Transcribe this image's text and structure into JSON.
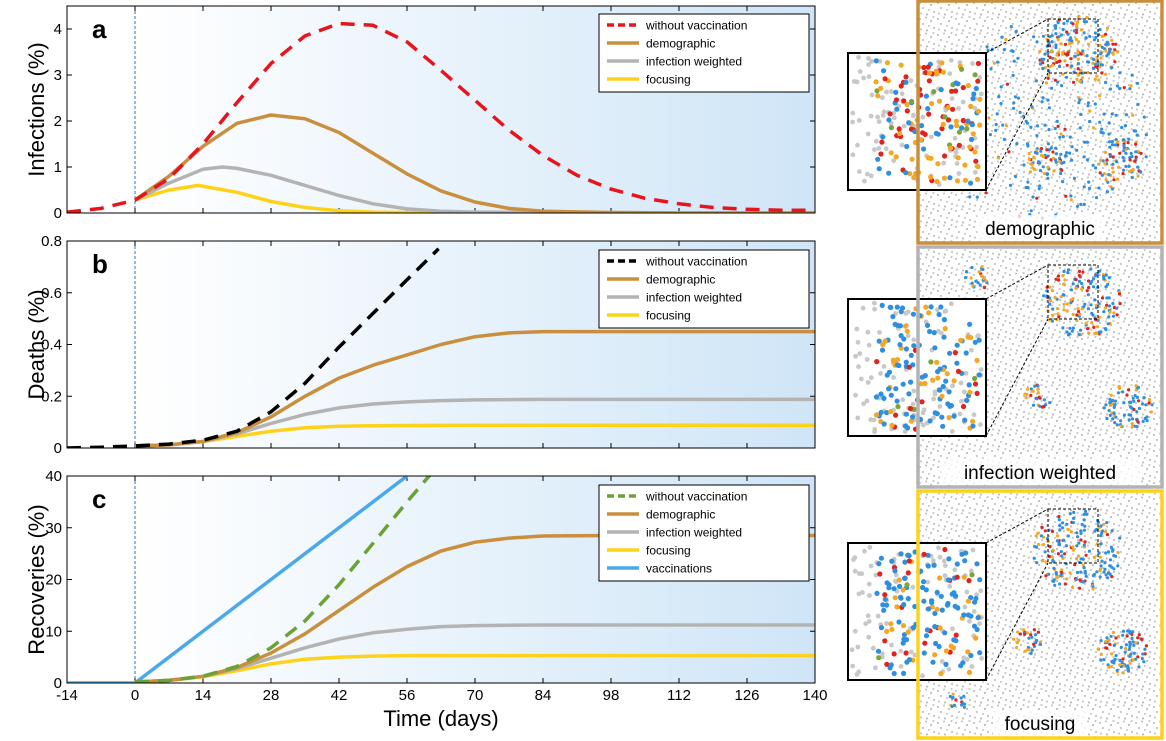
{
  "figure": {
    "xlabel": "Time (days)",
    "x_ticks": [
      -14,
      0,
      14,
      28,
      42,
      56,
      70,
      84,
      98,
      112,
      126,
      140
    ],
    "xlim": [
      -14,
      140
    ],
    "vaccination_start_day": 0
  },
  "colors": {
    "demographic": "#c98f3e",
    "infection_weighted": "#b3b3b3",
    "focusing": "#ffd21a",
    "vaccinations": "#4aa8ec",
    "without_vaccination_a": "#e8141c",
    "without_vaccination_b": "#000000",
    "without_vaccination_c": "#6aa235",
    "dashed_marker": "#1f77d6"
  },
  "chart_data": [
    {
      "type": "line",
      "panel_letter": "a",
      "ylabel": "Infections (%)",
      "ylim": [
        0,
        4.5
      ],
      "y_ticks": [
        0,
        1,
        2,
        3,
        4
      ],
      "legend_position": "top-right",
      "series": [
        {
          "name": "without vaccination",
          "key": "without_vaccination_a",
          "dashed": true,
          "x": [
            -14,
            -7,
            0,
            7,
            14,
            21,
            28,
            35,
            42,
            49,
            56,
            63,
            70,
            77,
            84,
            91,
            98,
            105,
            112,
            119,
            126,
            133,
            140
          ],
          "y": [
            0.02,
            0.1,
            0.28,
            0.75,
            1.5,
            2.4,
            3.25,
            3.85,
            4.12,
            4.08,
            3.72,
            3.1,
            2.45,
            1.8,
            1.25,
            0.82,
            0.52,
            0.32,
            0.2,
            0.12,
            0.08,
            0.06,
            0.06
          ]
        },
        {
          "name": "demographic",
          "key": "demographic",
          "dashed": false,
          "x": [
            0,
            7,
            14,
            21,
            28,
            35,
            42,
            49,
            56,
            63,
            70,
            77,
            84,
            98,
            112,
            126,
            140
          ],
          "y": [
            0.28,
            0.8,
            1.45,
            1.95,
            2.13,
            2.05,
            1.75,
            1.3,
            0.85,
            0.48,
            0.24,
            0.1,
            0.04,
            0.01,
            0.0,
            0.0,
            0.0
          ]
        },
        {
          "name": "infection weighted",
          "key": "infection_weighted",
          "dashed": false,
          "x": [
            0,
            7,
            14,
            18,
            21,
            28,
            35,
            42,
            49,
            56,
            63,
            70,
            84,
            98,
            112,
            126,
            140
          ],
          "y": [
            0.28,
            0.65,
            0.95,
            1.0,
            0.97,
            0.82,
            0.6,
            0.38,
            0.2,
            0.09,
            0.04,
            0.02,
            0.01,
            0.0,
            0.0,
            0.0,
            0.0
          ]
        },
        {
          "name": "focusing",
          "key": "focusing",
          "dashed": false,
          "x": [
            0,
            7,
            13,
            21,
            28,
            35,
            42,
            49,
            56,
            70,
            84,
            98,
            112,
            126,
            140
          ],
          "y": [
            0.28,
            0.5,
            0.6,
            0.45,
            0.25,
            0.12,
            0.05,
            0.02,
            0.01,
            0.0,
            0.0,
            0.0,
            0.0,
            0.0,
            0.0
          ]
        }
      ]
    },
    {
      "type": "line",
      "panel_letter": "b",
      "ylabel": "Deaths (%)",
      "ylim": [
        0,
        0.8
      ],
      "y_ticks": [
        0,
        0.2,
        0.4,
        0.6,
        0.8
      ],
      "legend_position": "top-right",
      "series": [
        {
          "name": "without vaccination",
          "key": "without_vaccination_b",
          "dashed": true,
          "x": [
            -14,
            -7,
            0,
            7,
            14,
            21,
            28,
            35,
            42,
            49,
            56,
            62.5
          ],
          "y": [
            0.0,
            0.003,
            0.008,
            0.015,
            0.03,
            0.065,
            0.14,
            0.25,
            0.39,
            0.52,
            0.65,
            0.77
          ]
        },
        {
          "name": "demographic",
          "key": "demographic",
          "dashed": false,
          "x": [
            0,
            7,
            14,
            21,
            28,
            35,
            42,
            49,
            56,
            63,
            70,
            77,
            84,
            98,
            112,
            126,
            140
          ],
          "y": [
            0.008,
            0.012,
            0.025,
            0.06,
            0.12,
            0.2,
            0.27,
            0.32,
            0.36,
            0.4,
            0.43,
            0.445,
            0.45,
            0.45,
            0.45,
            0.45,
            0.45
          ]
        },
        {
          "name": "infection weighted",
          "key": "infection_weighted",
          "dashed": false,
          "x": [
            0,
            7,
            14,
            21,
            28,
            35,
            42,
            49,
            56,
            63,
            70,
            84,
            98,
            112,
            126,
            140
          ],
          "y": [
            0.008,
            0.012,
            0.025,
            0.055,
            0.095,
            0.13,
            0.155,
            0.17,
            0.178,
            0.183,
            0.186,
            0.188,
            0.188,
            0.188,
            0.188,
            0.188
          ]
        },
        {
          "name": "focusing",
          "key": "focusing",
          "dashed": false,
          "x": [
            0,
            7,
            14,
            21,
            28,
            35,
            42,
            49,
            56,
            70,
            84,
            98,
            112,
            126,
            140
          ],
          "y": [
            0.008,
            0.012,
            0.025,
            0.045,
            0.065,
            0.078,
            0.084,
            0.086,
            0.087,
            0.088,
            0.088,
            0.088,
            0.088,
            0.088,
            0.088
          ]
        }
      ]
    },
    {
      "type": "line",
      "panel_letter": "c",
      "ylabel": "Recoveries (%)",
      "ylim": [
        0,
        40
      ],
      "y_ticks": [
        0,
        10,
        20,
        30,
        40
      ],
      "legend_position": "top-right",
      "series": [
        {
          "name": "without vaccination",
          "key": "without_vaccination_c",
          "dashed": true,
          "x": [
            0,
            7,
            14,
            21,
            28,
            35,
            42,
            49,
            56,
            61
          ],
          "y": [
            0.2,
            0.5,
            1.3,
            3.2,
            6.8,
            12.0,
            19.0,
            27.0,
            35.0,
            40.5
          ]
        },
        {
          "name": "demographic",
          "key": "demographic",
          "dashed": false,
          "x": [
            0,
            7,
            14,
            21,
            28,
            35,
            42,
            49,
            56,
            63,
            70,
            77,
            84,
            98,
            112,
            126,
            140
          ],
          "y": [
            0.2,
            0.5,
            1.3,
            3.0,
            5.8,
            9.5,
            14.0,
            18.5,
            22.5,
            25.5,
            27.2,
            28.0,
            28.4,
            28.5,
            28.5,
            28.5,
            28.5
          ]
        },
        {
          "name": "infection weighted",
          "key": "infection_weighted",
          "dashed": false,
          "x": [
            0,
            7,
            14,
            21,
            28,
            35,
            42,
            49,
            56,
            63,
            70,
            84,
            98,
            112,
            126,
            140
          ],
          "y": [
            0.2,
            0.5,
            1.3,
            2.8,
            4.8,
            6.8,
            8.5,
            9.7,
            10.4,
            10.9,
            11.1,
            11.2,
            11.2,
            11.2,
            11.2,
            11.2
          ]
        },
        {
          "name": "focusing",
          "key": "focusing",
          "dashed": false,
          "x": [
            0,
            7,
            14,
            21,
            28,
            35,
            42,
            49,
            56,
            70,
            84,
            98,
            112,
            126,
            140
          ],
          "y": [
            0.2,
            0.5,
            1.2,
            2.4,
            3.7,
            4.6,
            5.0,
            5.2,
            5.3,
            5.3,
            5.3,
            5.3,
            5.3,
            5.3,
            5.3
          ]
        },
        {
          "name": "vaccinations",
          "key": "vaccinations",
          "dashed": false,
          "x": [
            -14,
            0,
            56
          ],
          "y": [
            0.0,
            0.0,
            40.0
          ]
        }
      ]
    }
  ],
  "network_panels": [
    {
      "label": "demographic",
      "border_key": "demographic"
    },
    {
      "label": "infection weighted",
      "border_key": "infection_weighted"
    },
    {
      "label": "focusing",
      "border_key": "focusing"
    }
  ]
}
